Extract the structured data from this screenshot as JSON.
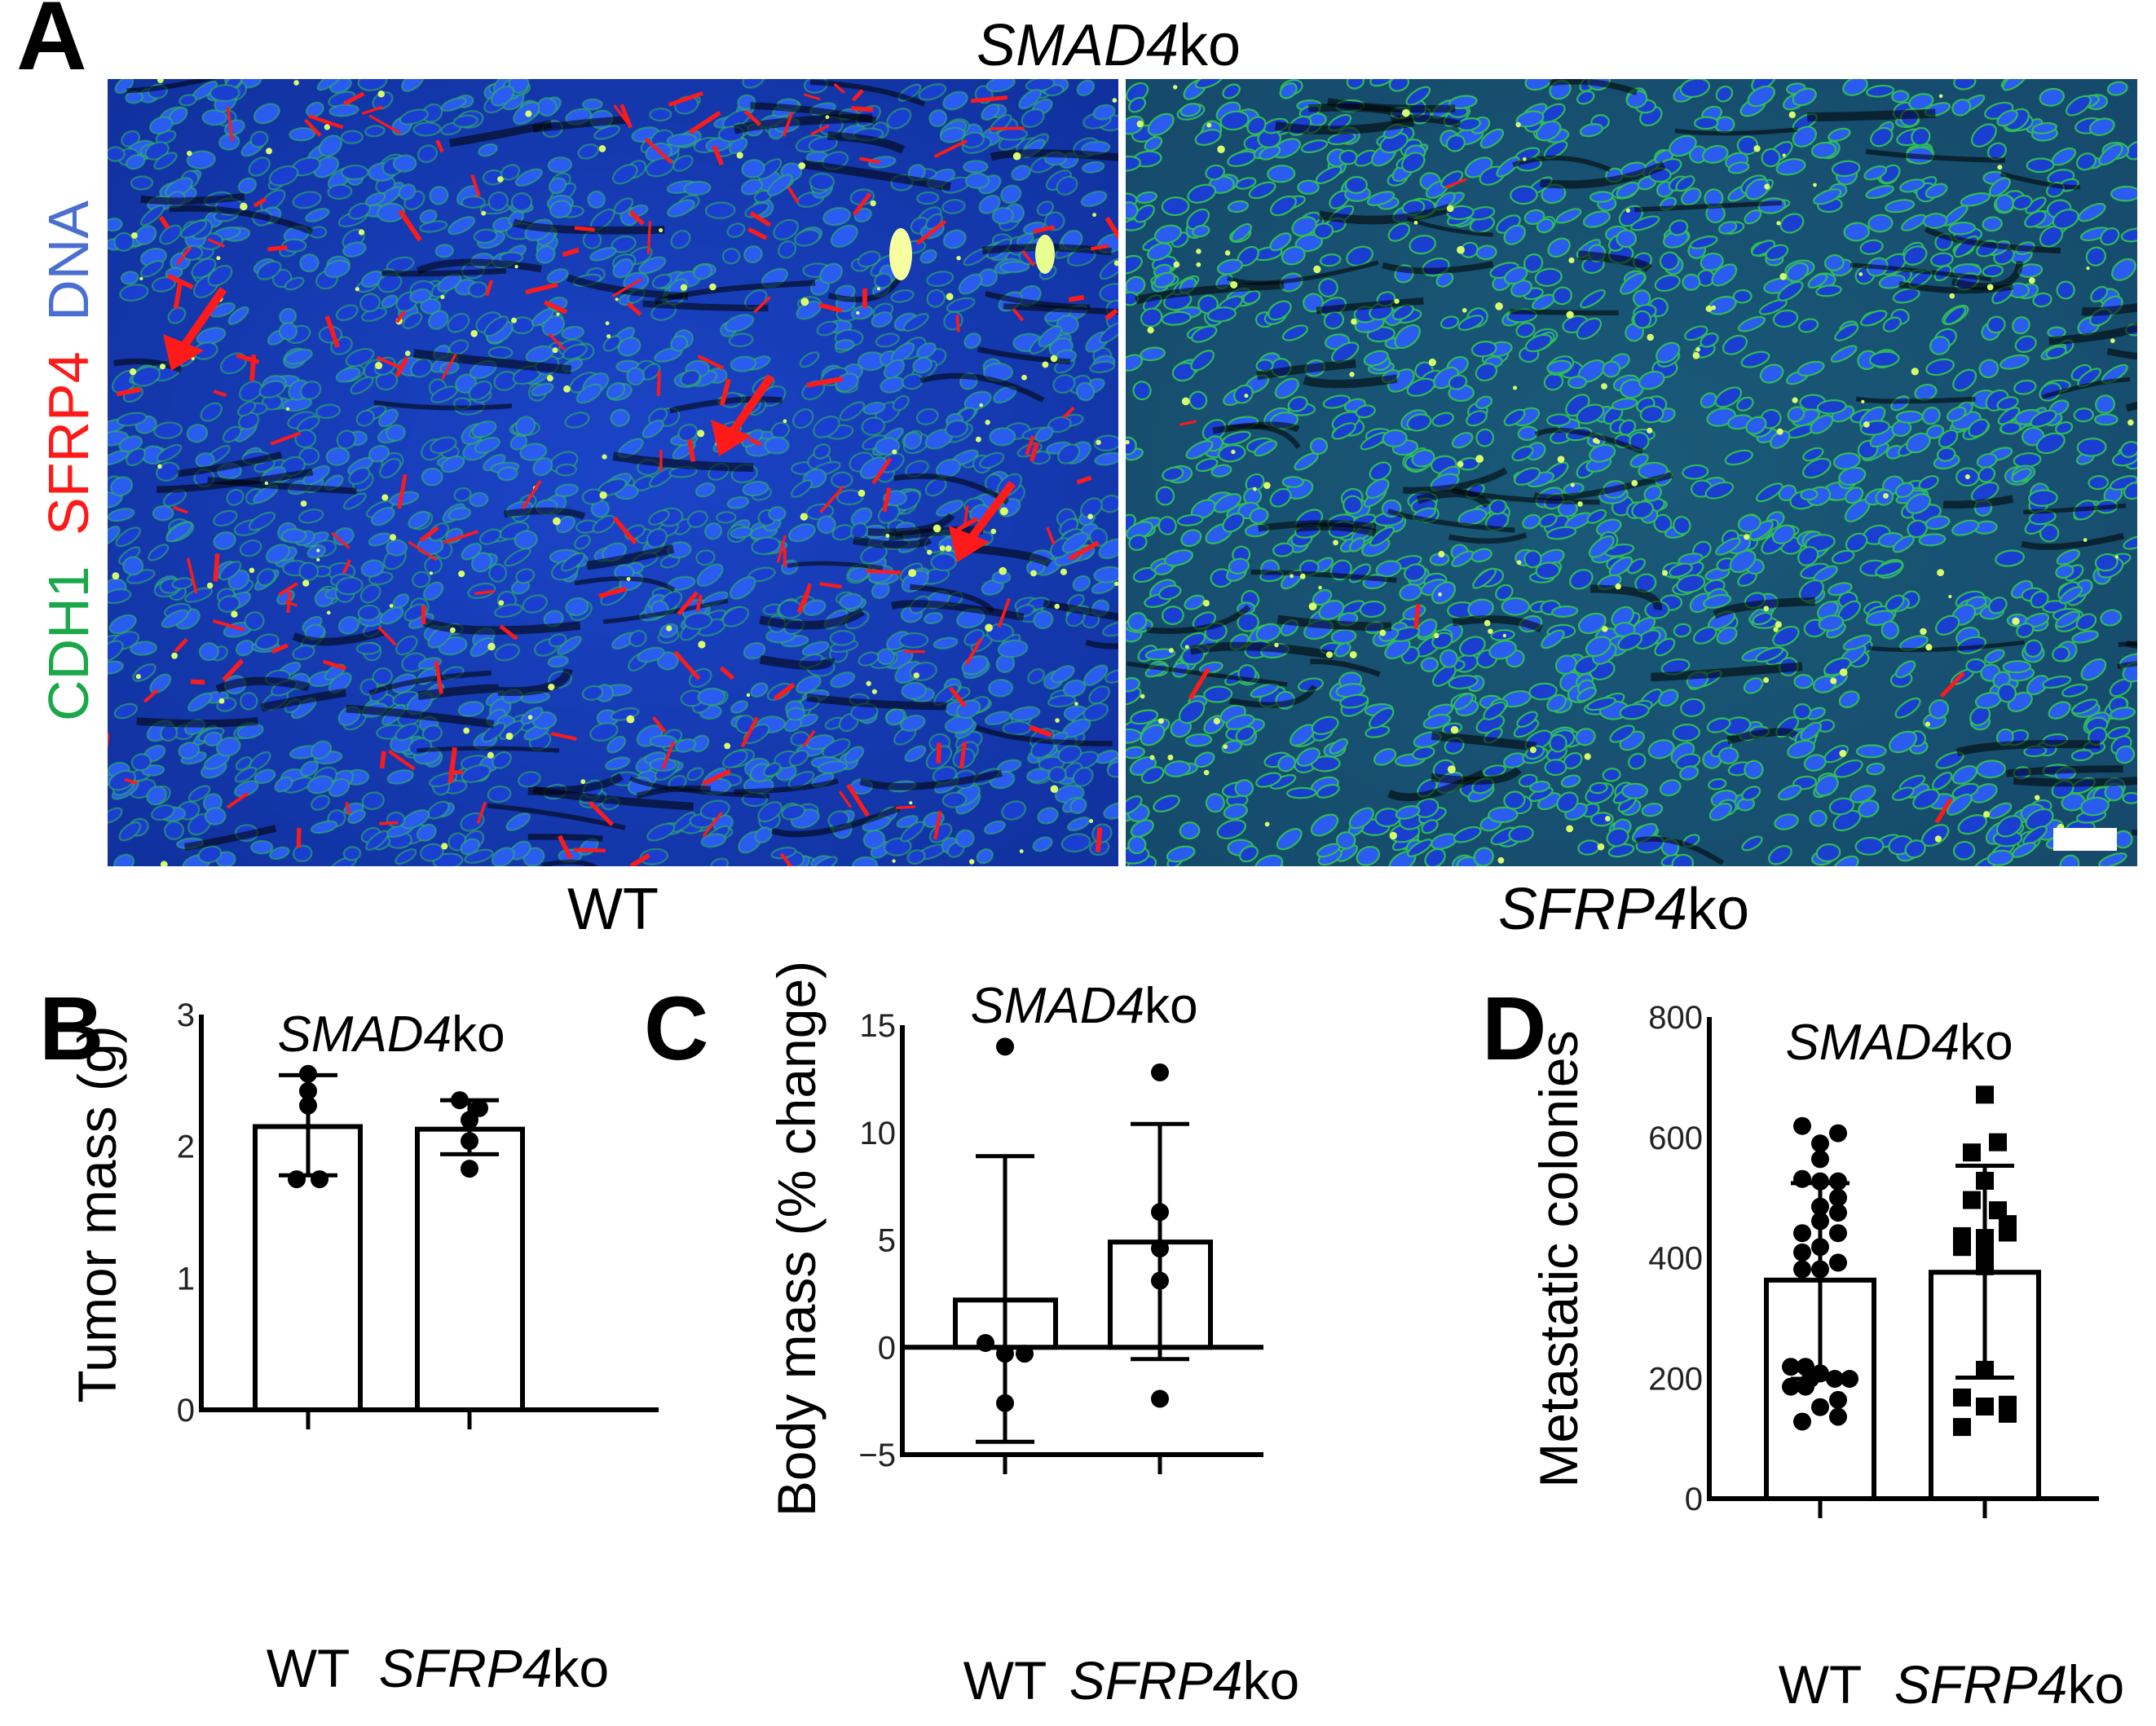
{
  "panel_a": {
    "letter": "A",
    "title_italic": "SMAD4",
    "title_suffix": "ko",
    "stain_labels": [
      {
        "text": "CDH1",
        "color": "#1aa84a"
      },
      {
        "text": "SFRP4",
        "color": "#ff1a1a"
      },
      {
        "text": "DNA",
        "color": "#4a6fd0"
      }
    ],
    "images": [
      {
        "label": "WT",
        "label_italic": "",
        "label_suffix": "WT",
        "red_signal": "high",
        "arrows": 3
      },
      {
        "label": "SFRP4ko",
        "label_italic": "SFRP4",
        "label_suffix": "ko",
        "red_signal": "low",
        "scale_bar": true
      }
    ],
    "colors": {
      "nuclei": "#1e4fd8",
      "membrane": "#2fb84a",
      "sfrp4": "#ff1a1a",
      "arrow": "#ff1a1a"
    }
  },
  "chart_data": [
    {
      "panel": "B",
      "type": "bar",
      "title": "SMAD4ko",
      "xlabel": "",
      "ylabel": "Tumor mass (g)",
      "categories": [
        "WT",
        "SFRP4ko"
      ],
      "ylim": [
        0,
        3
      ],
      "yticks": [
        0,
        1,
        2,
        3
      ],
      "series": [
        {
          "name": "mean",
          "values": [
            2.15,
            2.13
          ]
        },
        {
          "name": "sd_upper",
          "values": [
            2.54,
            2.35
          ]
        },
        {
          "name": "sd_lower",
          "values": [
            1.78,
            1.94
          ]
        }
      ],
      "points": [
        {
          "category": "WT",
          "marker": "circle",
          "values": [
            2.55,
            2.42,
            2.31,
            1.75,
            1.75
          ],
          "offsets": [
            0,
            0,
            0,
            -0.35,
            0.35
          ]
        },
        {
          "category": "SFRP4ko",
          "marker": "circle",
          "values": [
            2.35,
            2.29,
            2.2,
            2.04,
            1.83
          ],
          "offsets": [
            -0.3,
            0.3,
            0,
            0,
            0
          ]
        }
      ]
    },
    {
      "panel": "C",
      "type": "bar",
      "title": "SMAD4ko",
      "xlabel": "",
      "ylabel": "Body mass (% change)",
      "categories": [
        "WT",
        "SFRP4ko"
      ],
      "ylim": [
        -5,
        15
      ],
      "yticks": [
        -5,
        0,
        5,
        10,
        15
      ],
      "series": [
        {
          "name": "mean",
          "values": [
            2.2,
            4.9
          ]
        },
        {
          "name": "sd_upper",
          "values": [
            8.9,
            10.4
          ]
        },
        {
          "name": "sd_lower",
          "values": [
            -4.4,
            -0.55
          ]
        }
      ],
      "points": [
        {
          "category": "WT",
          "marker": "circle",
          "values": [
            14.0,
            0.2,
            -0.3,
            -0.3,
            -2.6
          ],
          "offsets": [
            0,
            -0.6,
            0,
            0.6,
            0
          ]
        },
        {
          "category": "SFRP4ko",
          "marker": "circle",
          "values": [
            12.8,
            6.3,
            4.6,
            3.1,
            -2.4
          ],
          "offsets": [
            0,
            0,
            0,
            0,
            0
          ]
        }
      ]
    },
    {
      "panel": "D",
      "type": "bar",
      "title": "SMAD4ko",
      "xlabel": "",
      "ylabel": "Metastatic colonies",
      "categories": [
        "WT",
        "SFRP4ko"
      ],
      "ylim": [
        0,
        800
      ],
      "yticks": [
        0,
        200,
        400,
        600,
        800
      ],
      "series": [
        {
          "name": "mean",
          "values": [
            363,
            376
          ]
        },
        {
          "name": "sd_upper",
          "values": [
            524,
            553
          ]
        },
        {
          "name": "sd_lower",
          "values": [
            199,
            201
          ]
        }
      ],
      "points": [
        {
          "category": "WT",
          "marker": "circle",
          "values": [
            619,
            607,
            590,
            564,
            531,
            527,
            527,
            500,
            485,
            475,
            461,
            441,
            441,
            418,
            409,
            392,
            381,
            381,
            219,
            219,
            208,
            199,
            199,
            199,
            186,
            186,
            164,
            152,
            136,
            128
          ],
          "offsets": [
            -0.55,
            0.55,
            0,
            0,
            -0.55,
            0,
            0.55,
            0.55,
            0,
            0.55,
            0,
            -0.55,
            0.55,
            0,
            -0.55,
            0.55,
            -0.55,
            0,
            -0.9,
            -0.45,
            0,
            0.45,
            0.9,
            -0.3,
            -0.9,
            -0.45,
            0.55,
            0,
            0.55,
            -0.55
          ]
        },
        {
          "category": "SFRP4ko",
          "marker": "square",
          "values": [
            671,
            592,
            575,
            528,
            496,
            479,
            456,
            442,
            436,
            433,
            418,
            407,
            386,
            214,
            168,
            156,
            153,
            141,
            119
          ],
          "offsets": [
            0,
            0.4,
            -0.4,
            0,
            -0.4,
            0.4,
            0.7,
            0.7,
            -0.7,
            0,
            -0.7,
            0,
            0,
            0,
            -0.7,
            0.7,
            0,
            0.7,
            -0.7
          ]
        }
      ]
    }
  ],
  "panels": {
    "B": {
      "letter": "B",
      "title_italic": "SMAD4",
      "title_suffix": "ko",
      "xcat_italic": [
        "",
        "SFRP4"
      ],
      "xcat_suffix": [
        "WT",
        "ko"
      ]
    },
    "C": {
      "letter": "C",
      "title_italic": "SMAD4",
      "title_suffix": "ko",
      "xcat_italic": [
        "",
        "SFRP4"
      ],
      "xcat_suffix": [
        "WT",
        "ko"
      ]
    },
    "D": {
      "letter": "D",
      "title_italic": "SMAD4",
      "title_suffix": "ko",
      "xcat_italic": [
        "",
        "SFRP4"
      ],
      "xcat_suffix": [
        "WT",
        "ko"
      ]
    }
  }
}
